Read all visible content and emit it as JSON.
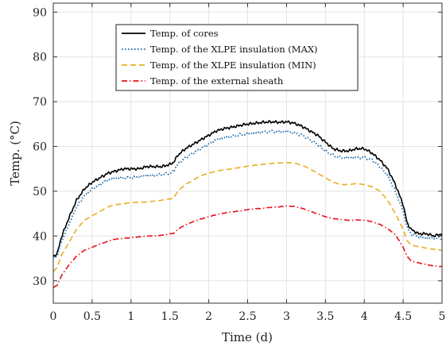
{
  "chart_data": {
    "type": "line",
    "xlabel": "Time (d)",
    "ylabel": "Temp. (°C)",
    "xlim": [
      0,
      5
    ],
    "ylim": [
      25,
      92
    ],
    "x_ticks": [
      0,
      0.5,
      1,
      1.5,
      2,
      2.5,
      3,
      3.5,
      4,
      4.5,
      5
    ],
    "x_tick_labels": [
      "0",
      "0.5",
      "1",
      "1.5",
      "2",
      "2.5",
      "3",
      "3.5",
      "4",
      "4.5",
      "5"
    ],
    "y_ticks": [
      30,
      40,
      50,
      60,
      70,
      80,
      90
    ],
    "y_tick_labels": [
      "30",
      "40",
      "50",
      "60",
      "70",
      "80",
      "90"
    ],
    "grid": true,
    "legend_position": "top-center",
    "series": [
      {
        "name": "Temp. of cores",
        "color": "#000000",
        "style": "solid",
        "x": [
          0,
          0.05,
          0.1,
          0.2,
          0.3,
          0.4,
          0.5,
          0.6,
          0.7,
          0.8,
          0.9,
          1.0,
          1.1,
          1.2,
          1.3,
          1.4,
          1.5,
          1.55,
          1.6,
          1.7,
          1.8,
          1.9,
          2.0,
          2.1,
          2.2,
          2.3,
          2.4,
          2.5,
          2.6,
          2.7,
          2.8,
          2.9,
          3.0,
          3.1,
          3.2,
          3.3,
          3.4,
          3.5,
          3.6,
          3.7,
          3.8,
          3.9,
          4.0,
          4.1,
          4.2,
          4.3,
          4.4,
          4.5,
          4.55,
          4.6,
          4.7,
          4.8,
          4.9,
          5.0
        ],
        "y": [
          35.5,
          36,
          39.5,
          44,
          48,
          50.5,
          52,
          53,
          54,
          54.5,
          55,
          55,
          55,
          55.5,
          55.5,
          55.5,
          56,
          56.5,
          58,
          59.5,
          60.5,
          61.5,
          62.5,
          63.5,
          64,
          64.3,
          64.7,
          65,
          65.2,
          65.4,
          65.5,
          65.4,
          65.5,
          65.2,
          64.5,
          63.5,
          62.5,
          61,
          59.5,
          59,
          59,
          59.5,
          59.5,
          58.5,
          57,
          55,
          51.5,
          47,
          43,
          41.5,
          40.5,
          40.5,
          40,
          40.5
        ]
      },
      {
        "name": "Temp. of the XLPE insulation (MAX)",
        "color": "#1f6fb0",
        "style": "dotted",
        "x": [
          0,
          0.05,
          0.1,
          0.2,
          0.3,
          0.4,
          0.5,
          0.6,
          0.7,
          0.8,
          0.9,
          1.0,
          1.1,
          1.2,
          1.3,
          1.4,
          1.5,
          1.55,
          1.6,
          1.7,
          1.8,
          1.9,
          2.0,
          2.1,
          2.2,
          2.3,
          2.4,
          2.5,
          2.6,
          2.7,
          2.8,
          2.9,
          3.0,
          3.1,
          3.2,
          3.3,
          3.4,
          3.5,
          3.6,
          3.7,
          3.8,
          3.9,
          4.0,
          4.1,
          4.2,
          4.3,
          4.4,
          4.5,
          4.55,
          4.6,
          4.7,
          4.8,
          4.9,
          5.0
        ],
        "y": [
          35,
          35.5,
          38.5,
          42.5,
          46.5,
          49,
          50.5,
          51.5,
          52.5,
          53,
          53,
          53,
          53.2,
          53.5,
          53.5,
          53.8,
          54,
          54.5,
          56,
          57.5,
          58.5,
          59.5,
          60.5,
          61.5,
          62,
          62.3,
          62.6,
          62.8,
          63,
          63.2,
          63.4,
          63.3,
          63.4,
          63,
          62.5,
          61.5,
          60.5,
          59,
          58,
          57.5,
          57.5,
          57.5,
          57.5,
          57,
          55.5,
          53.5,
          50,
          45.5,
          42,
          40.5,
          39.8,
          39.5,
          39.5,
          39.5
        ]
      },
      {
        "name": "Temp. of the XLPE insulation (MIN)",
        "color": "#e8b020",
        "style": "dashed",
        "x": [
          0,
          0.05,
          0.1,
          0.2,
          0.3,
          0.4,
          0.5,
          0.6,
          0.7,
          0.8,
          0.9,
          1.0,
          1.1,
          1.2,
          1.3,
          1.4,
          1.5,
          1.55,
          1.6,
          1.7,
          1.8,
          1.9,
          2.0,
          2.1,
          2.2,
          2.3,
          2.4,
          2.5,
          2.6,
          2.7,
          2.8,
          2.9,
          3.0,
          3.1,
          3.2,
          3.3,
          3.4,
          3.5,
          3.6,
          3.7,
          3.8,
          3.9,
          4.0,
          4.1,
          4.2,
          4.3,
          4.4,
          4.5,
          4.55,
          4.6,
          4.7,
          4.8,
          4.9,
          5.0
        ],
        "y": [
          32,
          33,
          35.5,
          38.5,
          41.5,
          43.5,
          44.5,
          45.5,
          46.5,
          47,
          47.2,
          47.5,
          47.5,
          47.6,
          47.8,
          48,
          48.3,
          48.5,
          50,
          51.5,
          52.5,
          53.5,
          54,
          54.5,
          54.8,
          55,
          55.3,
          55.6,
          55.8,
          56,
          56.2,
          56.3,
          56.4,
          56.3,
          55.8,
          55,
          54,
          53,
          52,
          51.5,
          51.5,
          51.7,
          51.5,
          51,
          50,
          48,
          45,
          41.5,
          39,
          38,
          37.6,
          37.3,
          37,
          36.8
        ]
      },
      {
        "name": "Temp. of the external sheath",
        "color": "#e8101a",
        "style": "dashdot",
        "x": [
          0,
          0.05,
          0.1,
          0.2,
          0.3,
          0.4,
          0.5,
          0.6,
          0.7,
          0.8,
          0.9,
          1.0,
          1.1,
          1.2,
          1.3,
          1.4,
          1.5,
          1.55,
          1.6,
          1.7,
          1.8,
          1.9,
          2.0,
          2.1,
          2.2,
          2.3,
          2.4,
          2.5,
          2.6,
          2.7,
          2.8,
          2.9,
          3.0,
          3.1,
          3.2,
          3.3,
          3.4,
          3.5,
          3.6,
          3.7,
          3.8,
          3.9,
          4.0,
          4.1,
          4.2,
          4.3,
          4.4,
          4.5,
          4.55,
          4.6,
          4.7,
          4.8,
          4.9,
          5.0
        ],
        "y": [
          28.5,
          29,
          31,
          33.5,
          35.5,
          36.8,
          37.5,
          38.2,
          38.8,
          39.3,
          39.5,
          39.6,
          39.8,
          40,
          40,
          40.2,
          40.5,
          40.6,
          41.5,
          42.5,
          43.2,
          43.8,
          44.3,
          44.8,
          45.1,
          45.4,
          45.6,
          45.9,
          46.1,
          46.2,
          46.4,
          46.5,
          46.7,
          46.6,
          46.2,
          45.6,
          44.9,
          44.3,
          43.9,
          43.7,
          43.5,
          43.6,
          43.5,
          43.2,
          42.6,
          41.7,
          40.3,
          37.5,
          35.5,
          34.5,
          34,
          33.6,
          33.3,
          33.2
        ]
      }
    ]
  }
}
